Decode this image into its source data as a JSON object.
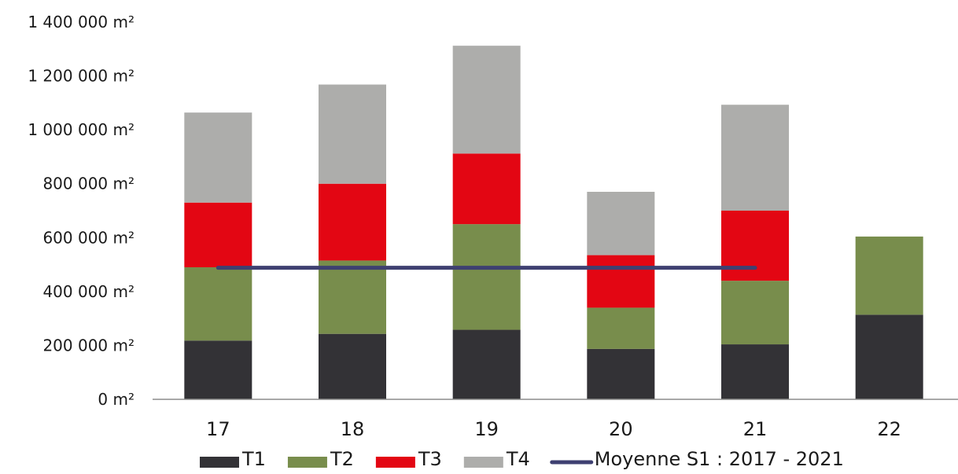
{
  "chart_data": {
    "type": "bar",
    "stacked": true,
    "categories": [
      "17",
      "18",
      "19",
      "20",
      "21",
      "22"
    ],
    "series": [
      {
        "name": "T1",
        "color": "#333236",
        "values": [
          218000,
          243000,
          258000,
          187000,
          204000,
          314000
        ]
      },
      {
        "name": "T2",
        "color": "#788d4c",
        "values": [
          272000,
          272000,
          392000,
          153000,
          236000,
          290000
        ]
      },
      {
        "name": "T3",
        "color": "#e30613",
        "values": [
          240000,
          285000,
          262000,
          195000,
          260000,
          0
        ]
      },
      {
        "name": "T4",
        "color": "#adadab",
        "values": [
          334000,
          368000,
          400000,
          235000,
          393000,
          0
        ]
      }
    ],
    "average_line": {
      "name": "Moyenne  S1 : 2017 - 2021",
      "color": "#3e4071",
      "value": 488000,
      "from_category": "17",
      "to_category": "21"
    },
    "y_axis": {
      "min": 0,
      "max": 1400000,
      "ticks": [
        0,
        200000,
        400000,
        600000,
        800000,
        1000000,
        1200000,
        1400000
      ],
      "tick_labels": [
        "0 m²",
        "200 000 m²",
        "400 000 m²",
        "600 000 m²",
        "800 000 m²",
        "1 000 000 m²",
        "1 200 000 m²",
        "1 400 000 m²"
      ]
    },
    "grid": false,
    "legend_position": "bottom",
    "title": "",
    "xlabel": "",
    "ylabel": ""
  }
}
